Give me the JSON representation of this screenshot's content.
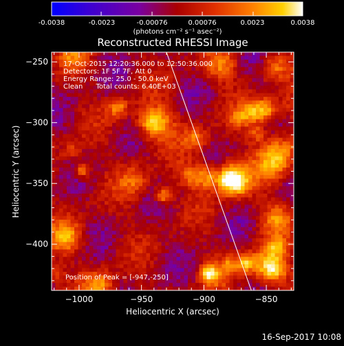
{
  "colorbar": {
    "tick_labels": [
      "-0.0038",
      "-0.0023",
      "-0.00076",
      "0.00076",
      "0.0023",
      "0.0038"
    ],
    "tick_values": [
      -0.0038,
      -0.0023,
      -0.00076,
      0.00076,
      0.0023,
      0.0038
    ],
    "range": [
      -0.0038,
      0.0038
    ],
    "units": "(photons cm⁻² s⁻¹ asec⁻²)",
    "colors": [
      "#0000ff",
      "#3c00d2",
      "#7a00a0",
      "#aa0000",
      "#e03000",
      "#ff8000",
      "#ffd000",
      "#ffffff"
    ]
  },
  "chart_data": {
    "type": "heatmap",
    "title": "Reconstructed RHESSI Image",
    "xlabel": "Heliocentric X (arcsec)",
    "ylabel": "Heliocentric Y (arcsec)",
    "xlim": [
      -1022,
      -828
    ],
    "ylim": [
      -438,
      -242
    ],
    "x_ticks": [
      -1000,
      -950,
      -900,
      -850
    ],
    "x_tick_labels": [
      "−1000",
      "−950",
      "−900",
      "−850"
    ],
    "y_ticks": [
      -250,
      -300,
      -350,
      -400
    ],
    "y_tick_labels": [
      "−250",
      "−300",
      "−350",
      "−400"
    ],
    "annotations": [
      "17-Oct-2015 12:20:36.000 to 12:50:36.000",
      "Detectors: 1F 5F 7F, Att 0",
      "Energy Range: 25.0 - 50.0 keV",
      "Clean      Total counts: 6.40E+03"
    ],
    "peak_label": "Position of Peak = [-947,-250]",
    "peak_position": [
      -947,
      -250
    ],
    "limb_line": [
      [
        -930,
        -242
      ],
      [
        -862,
        -438
      ]
    ],
    "grid": false
  },
  "footer": {
    "timestamp": "16-Sep-2017 10:08"
  }
}
